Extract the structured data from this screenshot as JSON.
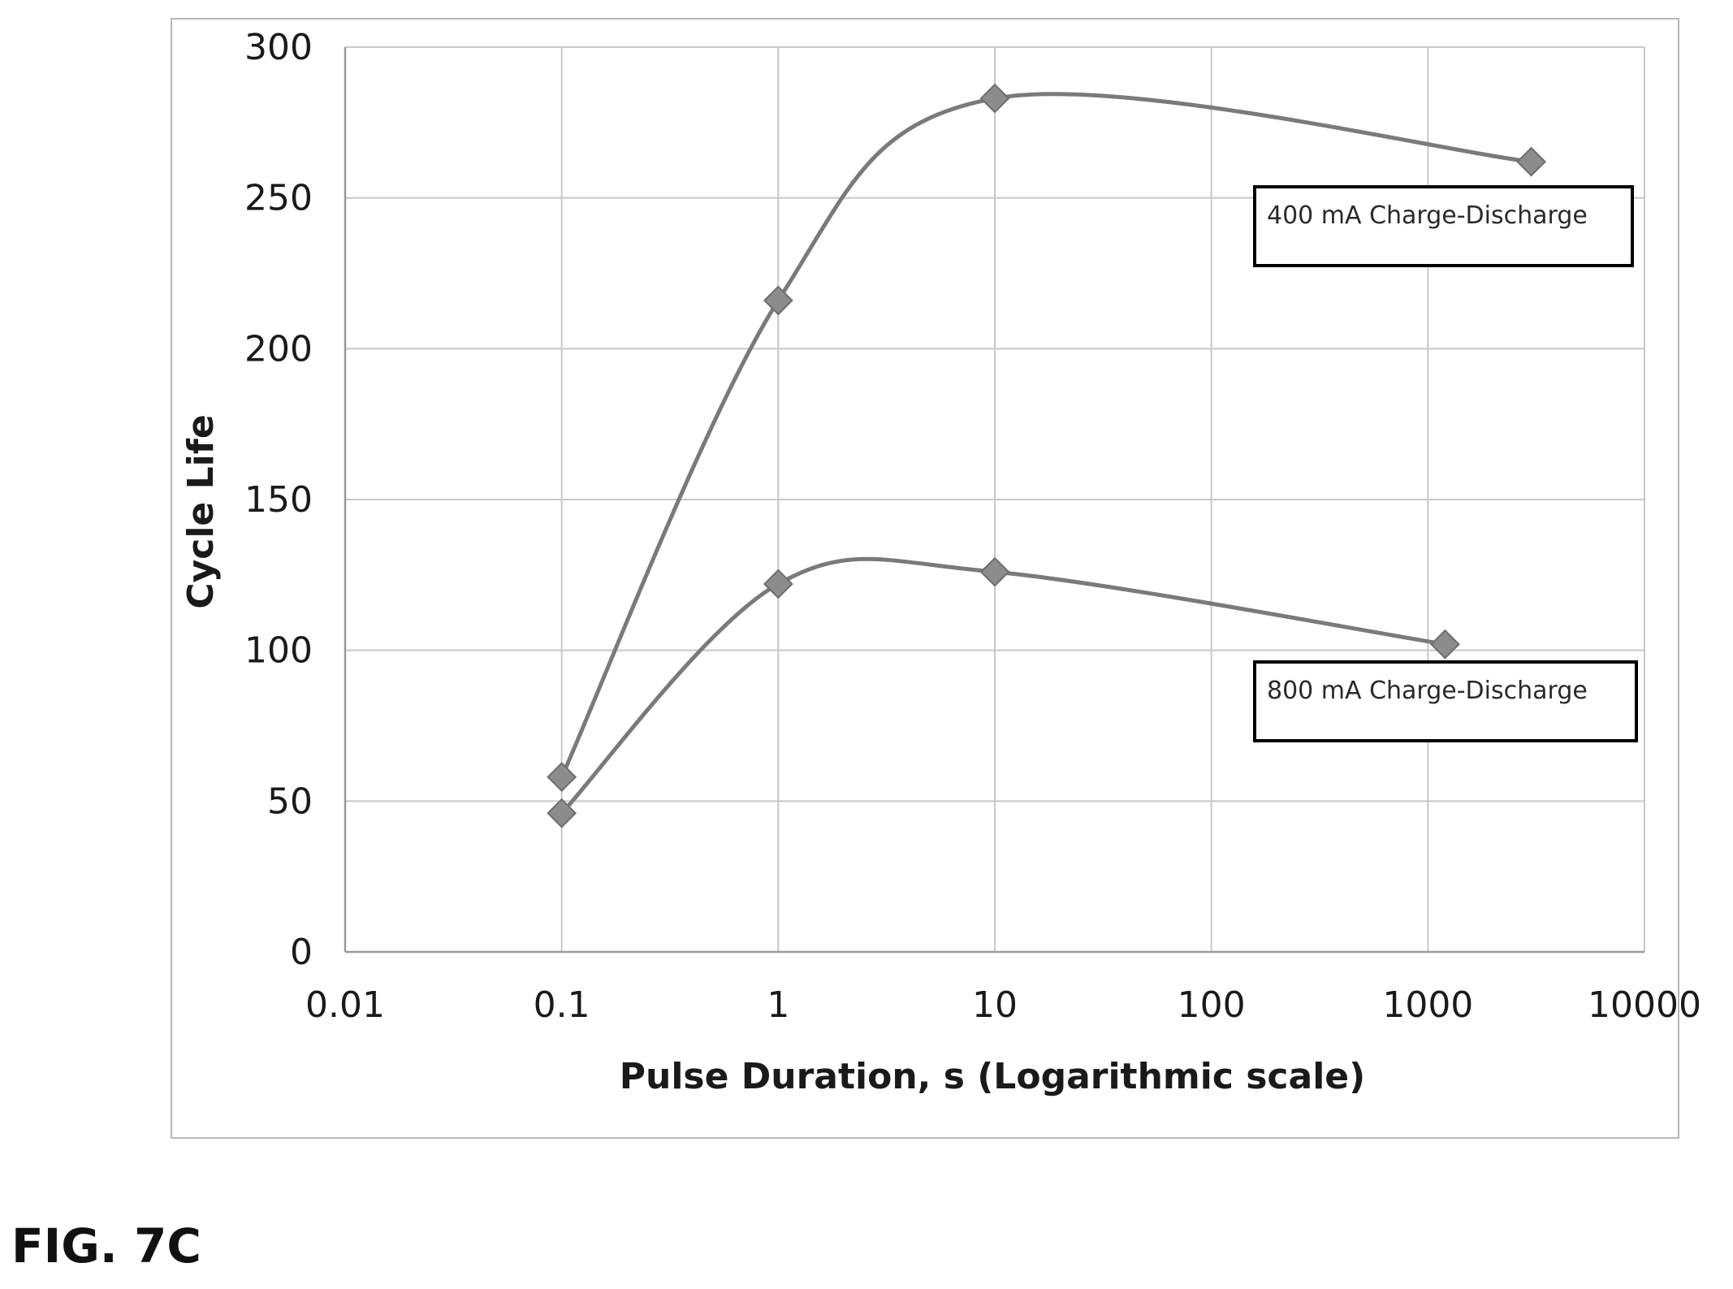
{
  "chart_data": {
    "type": "line",
    "xlabel": "Pulse Duration, s (Logarithmic scale)",
    "ylabel": "Cycle Life",
    "x_scale": "log",
    "xlim": [
      0.01,
      10000
    ],
    "ylim": [
      0,
      300
    ],
    "x_ticks": [
      "0.01",
      "0.1",
      "1",
      "10",
      "100",
      "1000",
      "10000"
    ],
    "y_ticks": [
      "0",
      "50",
      "100",
      "150",
      "200",
      "250",
      "300"
    ],
    "grid": true,
    "colors": {
      "series": "#7a7a7a",
      "marker": "#8c8c8c",
      "grid": "#c8c8c8",
      "label_border": "#000000"
    },
    "series": [
      {
        "name": "400 mA Charge-Discharge",
        "points": [
          [
            0.1,
            58
          ],
          [
            1,
            216
          ],
          [
            10,
            283
          ],
          [
            3000,
            262
          ]
        ]
      },
      {
        "name": "800 mA Charge-Discharge",
        "points": [
          [
            0.1,
            46
          ],
          [
            1,
            122
          ],
          [
            10,
            126
          ],
          [
            1200,
            102
          ]
        ]
      }
    ]
  },
  "figure_caption": "FIG. 7C"
}
